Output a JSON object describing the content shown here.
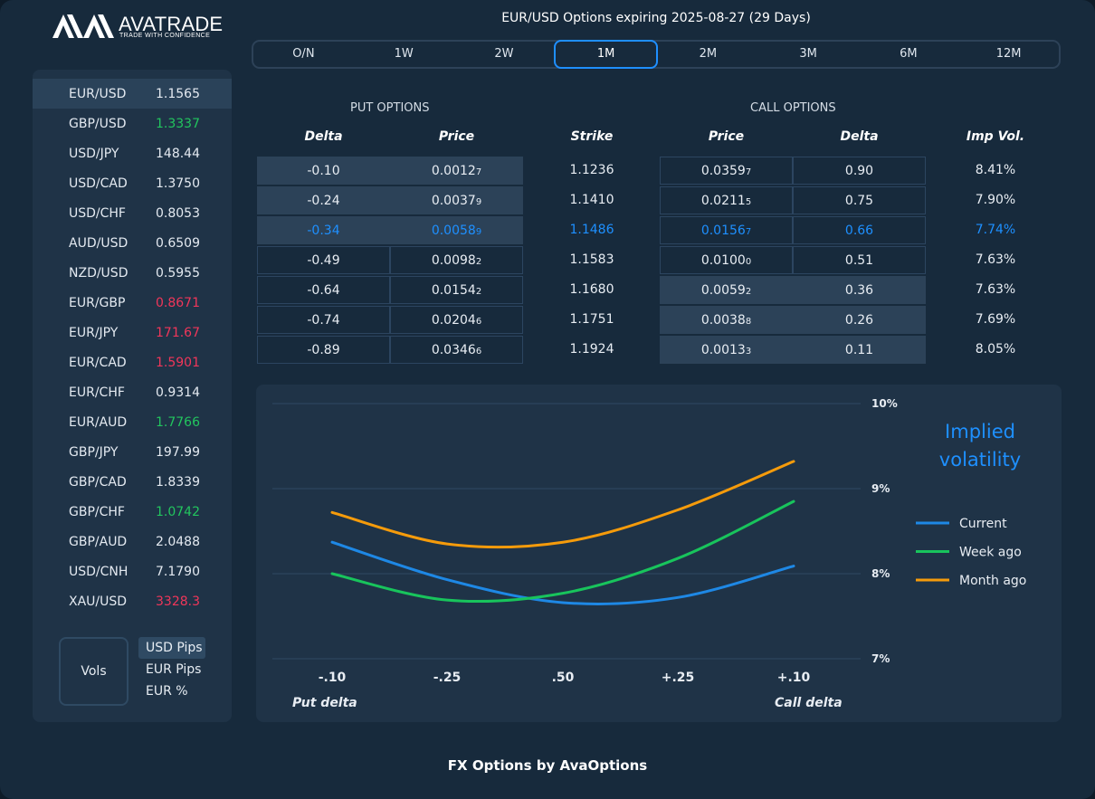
{
  "brand": {
    "name": "AVATRADE",
    "tagline": "TRADE WITH CONFIDENCE"
  },
  "title": "EUR/USD Options expiring 2025-08-27 (29 Days)",
  "tenors": [
    {
      "label": "O/N",
      "active": false
    },
    {
      "label": "1W",
      "active": false
    },
    {
      "label": "2W",
      "active": false
    },
    {
      "label": "1M",
      "active": true
    },
    {
      "label": "2M",
      "active": false
    },
    {
      "label": "3M",
      "active": false
    },
    {
      "label": "6M",
      "active": false
    },
    {
      "label": "12M",
      "active": false
    }
  ],
  "pairs": [
    {
      "symbol": "EUR/USD",
      "price": "1.1565",
      "trend": "neutral",
      "selected": true
    },
    {
      "symbol": "GBP/USD",
      "price": "1.3337",
      "trend": "up"
    },
    {
      "symbol": "USD/JPY",
      "price": "148.44",
      "trend": "neutral"
    },
    {
      "symbol": "USD/CAD",
      "price": "1.3750",
      "trend": "neutral"
    },
    {
      "symbol": "USD/CHF",
      "price": "0.8053",
      "trend": "neutral"
    },
    {
      "symbol": "AUD/USD",
      "price": "0.6509",
      "trend": "neutral"
    },
    {
      "symbol": "NZD/USD",
      "price": "0.5955",
      "trend": "neutral"
    },
    {
      "symbol": "EUR/GBP",
      "price": "0.8671",
      "trend": "down"
    },
    {
      "symbol": "EUR/JPY",
      "price": "171.67",
      "trend": "down"
    },
    {
      "symbol": "EUR/CAD",
      "price": "1.5901",
      "trend": "down"
    },
    {
      "symbol": "EUR/CHF",
      "price": "0.9314",
      "trend": "neutral"
    },
    {
      "symbol": "EUR/AUD",
      "price": "1.7766",
      "trend": "up"
    },
    {
      "symbol": "GBP/JPY",
      "price": "197.99",
      "trend": "neutral"
    },
    {
      "symbol": "GBP/CAD",
      "price": "1.8339",
      "trend": "neutral"
    },
    {
      "symbol": "GBP/CHF",
      "price": "1.0742",
      "trend": "up"
    },
    {
      "symbol": "GBP/AUD",
      "price": "2.0488",
      "trend": "neutral"
    },
    {
      "symbol": "USD/CNH",
      "price": "7.1790",
      "trend": "neutral"
    },
    {
      "symbol": "XAU/USD",
      "price": "3328.3",
      "trend": "down"
    }
  ],
  "vols_label": "Vols",
  "units": [
    {
      "label": "USD Pips",
      "active": true
    },
    {
      "label": "EUR Pips",
      "active": false
    },
    {
      "label": "EUR %",
      "active": false
    }
  ],
  "table": {
    "put_label": "PUT OPTIONS",
    "call_label": "CALL OPTIONS",
    "headers": {
      "put_delta": "Delta",
      "put_price": "Price",
      "strike": "Strike",
      "call_price": "Price",
      "call_delta": "Delta",
      "imp_vol": "Imp Vol."
    },
    "rows": [
      {
        "put_delta": "-0.10",
        "put_price": "0.0012",
        "put_price_sub": "7",
        "strike": "1.1236",
        "call_price": "0.0359",
        "call_price_sub": "7",
        "call_delta": "0.90",
        "imp_vol": "8.41%",
        "atm": false
      },
      {
        "put_delta": "-0.24",
        "put_price": "0.0037",
        "put_price_sub": "9",
        "strike": "1.1410",
        "call_price": "0.0211",
        "call_price_sub": "5",
        "call_delta": "0.75",
        "imp_vol": "7.90%",
        "atm": false
      },
      {
        "put_delta": "-0.34",
        "put_price": "0.0058",
        "put_price_sub": "9",
        "strike": "1.1486",
        "call_price": "0.0156",
        "call_price_sub": "7",
        "call_delta": "0.66",
        "imp_vol": "7.74%",
        "atm": true
      },
      {
        "put_delta": "-0.49",
        "put_price": "0.0098",
        "put_price_sub": "2",
        "strike": "1.1583",
        "call_price": "0.0100",
        "call_price_sub": "0",
        "call_delta": "0.51",
        "imp_vol": "7.63%",
        "atm": false
      },
      {
        "put_delta": "-0.64",
        "put_price": "0.0154",
        "put_price_sub": "2",
        "strike": "1.1680",
        "call_price": "0.0059",
        "call_price_sub": "2",
        "call_delta": "0.36",
        "imp_vol": "7.63%",
        "atm": false
      },
      {
        "put_delta": "-0.74",
        "put_price": "0.0204",
        "put_price_sub": "6",
        "strike": "1.1751",
        "call_price": "0.0038",
        "call_price_sub": "8",
        "call_delta": "0.26",
        "imp_vol": "7.69%",
        "atm": false
      },
      {
        "put_delta": "-0.89",
        "put_price": "0.0346",
        "put_price_sub": "6",
        "strike": "1.1924",
        "call_price": "0.0013",
        "call_price_sub": "3",
        "call_delta": "0.11",
        "imp_vol": "8.05%",
        "atm": false
      }
    ]
  },
  "chart_data": {
    "type": "line",
    "title": "Implied volatility",
    "categories": [
      "-.10",
      "-.25",
      ".50",
      "+.25",
      "+.10"
    ],
    "xlabel_left": "Put delta",
    "xlabel_right": "Call delta",
    "yticks": [
      "7%",
      "8%",
      "9%",
      "10%"
    ],
    "ylim": [
      7,
      10
    ],
    "grid": true,
    "legend_position": "right",
    "series": [
      {
        "name": "Current",
        "color": "#1e88e5",
        "values": [
          8.37,
          7.93,
          7.66,
          7.72,
          8.09
        ]
      },
      {
        "name": "Week ago",
        "color": "#18c45c",
        "values": [
          8.0,
          7.69,
          7.77,
          8.18,
          8.85
        ]
      },
      {
        "name": "Month ago",
        "color": "#f59b0b",
        "values": [
          8.72,
          8.35,
          8.37,
          8.75,
          9.32
        ]
      }
    ]
  },
  "footer": "FX Options by AvaOptions",
  "colors": {
    "accent": "#1e90ff",
    "up": "#22c55e",
    "down": "#f0365a"
  }
}
